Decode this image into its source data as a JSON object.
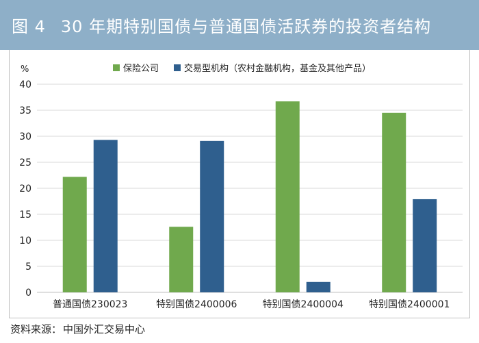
{
  "header": {
    "figure_label": "图 4",
    "title": "30 年期特别国债与普通国债活跃券的投资者结构",
    "bg_color": "#8eafc8"
  },
  "source": {
    "label": "资料来源：",
    "value": "中国外汇交易中心"
  },
  "chart_data": {
    "type": "bar",
    "ylabel": "%",
    "ylim": [
      0,
      40
    ],
    "yticks": [
      0,
      5,
      10,
      15,
      20,
      25,
      30,
      35,
      40
    ],
    "grid": true,
    "legend_position": "top",
    "categories": [
      "普通国债230023",
      "特别国债2400006",
      "特别国债2400004",
      "特别国债2400001"
    ],
    "series": [
      {
        "name": "保险公司",
        "color": "#70a94d",
        "values": [
          22.2,
          12.6,
          36.7,
          34.5
        ]
      },
      {
        "name": "交易型机构（农村金融机构，基金及其他产品）",
        "color": "#2f5f8e",
        "values": [
          29.3,
          29.1,
          2.0,
          17.9
        ]
      }
    ]
  }
}
